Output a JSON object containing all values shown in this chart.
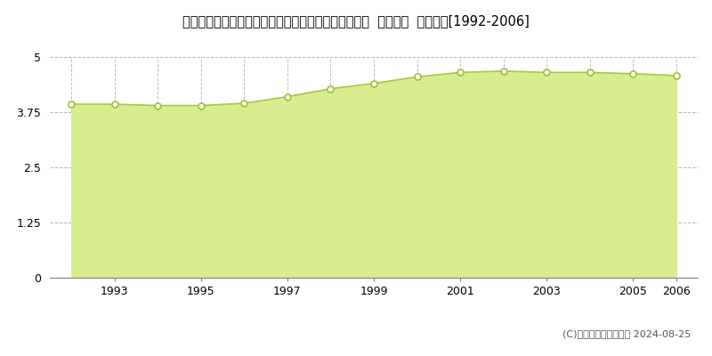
{
  "title": "岩手県紫波郡矢巾町大字赤林第１７地割字林崎８番６  地価公示  地価推移[1992-2006]",
  "years": [
    1992,
    1993,
    1994,
    1995,
    1996,
    1997,
    1998,
    1999,
    2000,
    2001,
    2002,
    2003,
    2004,
    2005,
    2006
  ],
  "values": [
    3.93,
    3.93,
    3.9,
    3.9,
    3.95,
    4.1,
    4.28,
    4.4,
    4.55,
    4.65,
    4.68,
    4.65,
    4.65,
    4.62,
    4.58
  ],
  "ylim": [
    0,
    5
  ],
  "yticks": [
    0,
    1.25,
    2.5,
    3.75,
    5
  ],
  "line_color": "#a8c840",
  "fill_color": "#d8ed90",
  "marker_color": "#ffffff",
  "marker_edge_color": "#a0c030",
  "bg_color": "#ffffff",
  "grid_color": "#b0b0b0",
  "legend_color": "#c8e040",
  "copyright_text": "(C)土地価格ドットコム 2024-08-25",
  "xtick_years": [
    1993,
    1995,
    1997,
    1999,
    2001,
    2003,
    2005,
    2006
  ],
  "title_fontsize": 10.5,
  "tick_fontsize": 9,
  "legend_fontsize": 9,
  "copyright_fontsize": 8
}
